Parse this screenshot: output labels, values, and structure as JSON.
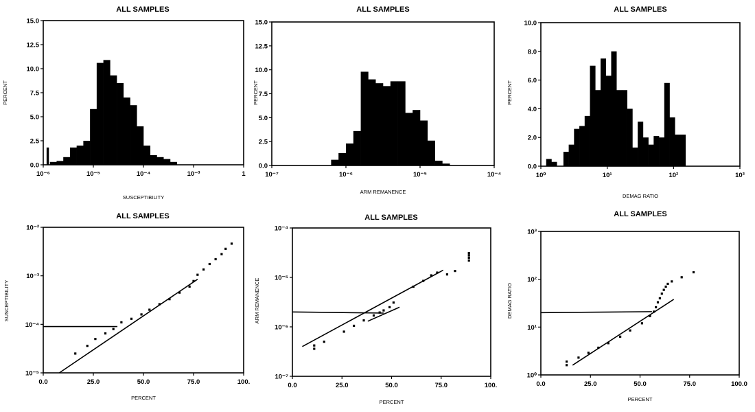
{
  "chart_data": [
    {
      "type": "bar",
      "title": "ALL SAMPLES",
      "xlabel": "SUSCEPTIBILITY",
      "ylabel": "PERCENT",
      "x_scale": "log",
      "xlim": [
        1e-06,
        1
      ],
      "ylim": [
        0,
        15
      ],
      "x_ticks": [
        "10⁻⁶",
        "10⁻⁵",
        "10⁻⁴",
        "10⁻³",
        "1"
      ],
      "y_ticks": [
        "0.0",
        "2.5",
        "5.0",
        "7.5",
        "10.0",
        "12.5",
        "15.0"
      ],
      "bins_log10_start": [
        -5.8,
        -5.6,
        -5.4,
        -5.2,
        -5.0,
        -4.8,
        -4.6,
        -4.4,
        -4.2,
        -4.0,
        -3.8,
        -3.6,
        -3.4,
        -3.2,
        -3.0
      ],
      "bin_width_log10": 0.2,
      "isolated_bins": [
        {
          "log10_start": -5.9,
          "log10_end": -5.83,
          "value": 1.8
        }
      ],
      "values": [
        0.3,
        0.4,
        0.8,
        1.8,
        2.0,
        2.5,
        5.8,
        10.6,
        10.9,
        9.3,
        8.5,
        7.0,
        6.2,
        4.0,
        2.0,
        1.0,
        0.8,
        0.6,
        0.3
      ],
      "values_bins_log10_start": [
        -5.8,
        -5.6,
        -5.4,
        -5.2,
        -5.0,
        -4.8,
        -4.6,
        -4.4,
        -4.2,
        -4.0,
        -3.8,
        -3.6,
        -3.4,
        -3.2,
        -3.0,
        -2.8,
        -2.6,
        -2.4,
        -2.2
      ]
    },
    {
      "type": "bar",
      "title": "ALL SAMPLES",
      "xlabel": "ARM REMANENCE",
      "ylabel": "PERCENT",
      "x_scale": "log",
      "xlim": [
        1e-07,
        0.0001
      ],
      "ylim": [
        0,
        15
      ],
      "x_ticks": [
        "10⁻⁷",
        "10⁻⁶",
        "10⁻⁵",
        "10⁻⁴"
      ],
      "y_ticks": [
        "0.0",
        "2.5",
        "5.0",
        "7.5",
        "10.0",
        "12.5",
        "15.0"
      ],
      "bins_log10_start": [
        -6.2,
        -6.1,
        -6.0,
        -5.9,
        -5.8,
        -5.7,
        -5.6,
        -5.5,
        -5.4,
        -5.3,
        -5.2,
        -5.1,
        -5.0,
        -4.9,
        -4.8,
        -4.7
      ],
      "bin_width_log10": 0.1,
      "values": [
        0.6,
        1.3,
        2.3,
        3.6,
        9.8,
        9.0,
        8.6,
        8.3,
        8.8,
        8.8,
        5.5,
        5.8,
        4.7,
        2.6,
        0.5,
        0.2
      ]
    },
    {
      "type": "bar",
      "title": "ALL SAMPLES",
      "xlabel": "DEMAG RATIO",
      "ylabel": "PERCENT",
      "x_scale": "log",
      "xlim": [
        1,
        1000
      ],
      "ylim": [
        0,
        10
      ],
      "x_ticks": [
        "10⁰",
        "10¹",
        "10²",
        "10³"
      ],
      "y_ticks": [
        "0.0",
        "2.0",
        "4.0",
        "6.0",
        "8.0",
        "10.0"
      ],
      "bins_log10_start": [
        0.08,
        0.16,
        0.34,
        0.42,
        0.5,
        0.58,
        0.66,
        0.74,
        0.82,
        0.9,
        0.98,
        1.06,
        1.14,
        1.22,
        1.3,
        1.38,
        1.46,
        1.54,
        1.62,
        1.7,
        1.78,
        1.86,
        1.94,
        2.02,
        2.1
      ],
      "bin_width_log10": 0.08,
      "values": [
        0.5,
        0.3,
        1.0,
        1.5,
        2.6,
        2.8,
        3.5,
        7.0,
        5.3,
        7.5,
        6.3,
        8.0,
        5.3,
        5.3,
        4.0,
        1.3,
        3.1,
        2.0,
        1.5,
        2.1,
        2.0,
        5.8,
        3.4,
        2.2,
        2.2
      ]
    },
    {
      "type": "scatter",
      "title": "ALL SAMPLES",
      "xlabel": "PERCENT",
      "ylabel": "SUSCEPTIBILITY",
      "y_scale": "log",
      "xlim": [
        0,
        100
      ],
      "ylim": [
        1e-05,
        0.01
      ],
      "x_ticks": [
        "0.0",
        "25.0",
        "50.0",
        "75.0",
        "100."
      ],
      "y_ticks": [
        "10⁻⁵",
        "10⁻⁴",
        "10⁻³",
        "10⁻²"
      ],
      "points": [
        [
          16,
          2.5e-05
        ],
        [
          22,
          3.6e-05
        ],
        [
          26,
          5e-05
        ],
        [
          31,
          6.5e-05
        ],
        [
          35,
          8e-05
        ],
        [
          39,
          0.00011
        ],
        [
          44,
          0.00013
        ],
        [
          49,
          0.00016
        ],
        [
          53,
          0.0002
        ],
        [
          58,
          0.00026
        ],
        [
          63,
          0.00033
        ],
        [
          68,
          0.00045
        ],
        [
          73,
          0.0006
        ],
        [
          75,
          0.00078
        ],
        [
          77,
          0.00105
        ],
        [
          80,
          0.00135
        ],
        [
          83,
          0.00175
        ],
        [
          86,
          0.0022
        ],
        [
          89,
          0.0028
        ],
        [
          91,
          0.0036
        ],
        [
          94,
          0.0046
        ]
      ],
      "lines": [
        {
          "points": [
            [
              8,
              1e-05
            ],
            [
              77,
              0.00085
            ]
          ]
        },
        {
          "points": [
            [
              0,
              9e-05
            ],
            [
              37,
              9e-05
            ]
          ]
        }
      ]
    },
    {
      "type": "scatter",
      "title": "ALL SAMPLES",
      "xlabel": "PERCENT",
      "ylabel": "ARM REMANENCE",
      "y_scale": "log",
      "xlim": [
        0,
        100
      ],
      "ylim": [
        1e-07,
        0.0001
      ],
      "x_ticks": [
        "0.0",
        "25.0",
        "50.0",
        "75.0",
        "100."
      ],
      "y_ticks": [
        "10⁻⁷",
        "10⁻⁶",
        "10⁻⁵",
        "10⁻⁴"
      ],
      "points": [
        [
          11,
          3.6e-07
        ],
        [
          11,
          4.2e-07
        ],
        [
          16,
          5e-07
        ],
        [
          26,
          8e-07
        ],
        [
          31,
          1.05e-06
        ],
        [
          36,
          1.35e-06
        ],
        [
          41,
          1.7e-06
        ],
        [
          44,
          1.95e-06
        ],
        [
          46,
          2.15e-06
        ],
        [
          49,
          2.5e-06
        ],
        [
          51,
          3.1e-06
        ],
        [
          61,
          6.5e-06
        ],
        [
          66,
          8.5e-06
        ],
        [
          70,
          1.1e-05
        ],
        [
          73,
          1.25e-05
        ],
        [
          78,
          1.15e-05
        ],
        [
          82,
          1.35e-05
        ],
        [
          89,
          2.2e-05
        ],
        [
          89,
          2.5e-05
        ],
        [
          89,
          2.8e-05
        ],
        [
          89,
          3.1e-05
        ]
      ],
      "lines": [
        {
          "points": [
            [
              5,
              4e-07
            ],
            [
              76,
              1.4e-05
            ]
          ]
        },
        {
          "points": [
            [
              38,
              1.3e-06
            ],
            [
              54,
              2.5e-06
            ]
          ]
        },
        {
          "points": [
            [
              0,
              2e-06
            ],
            [
              46,
              1.9e-06
            ]
          ]
        }
      ]
    },
    {
      "type": "scatter",
      "title": "ALL SAMPLES",
      "xlabel": "PERCENT",
      "ylabel": "DEMAG RATIO",
      "y_scale": "log",
      "xlim": [
        0,
        100
      ],
      "ylim": [
        1,
        1000
      ],
      "x_ticks": [
        "0.0",
        "25.0",
        "50.0",
        "75.0",
        "100.0"
      ],
      "y_ticks": [
        "10⁰",
        "10¹",
        "10²",
        "10³"
      ],
      "points": [
        [
          13,
          1.6
        ],
        [
          13,
          1.9
        ],
        [
          19,
          2.3
        ],
        [
          24,
          2.9
        ],
        [
          29,
          3.7
        ],
        [
          34,
          4.6
        ],
        [
          40,
          6.3
        ],
        [
          45,
          8.5
        ],
        [
          51,
          12
        ],
        [
          55,
          17
        ],
        [
          57,
          21
        ],
        [
          58,
          26
        ],
        [
          59,
          33
        ],
        [
          60,
          40
        ],
        [
          61,
          50
        ],
        [
          62,
          60
        ],
        [
          63,
          70
        ],
        [
          64,
          80
        ],
        [
          66,
          90
        ],
        [
          71,
          110
        ],
        [
          77,
          140
        ]
      ],
      "lines": [
        {
          "points": [
            [
              16,
              1.6
            ],
            [
              67,
              38
            ]
          ]
        },
        {
          "points": [
            [
              0,
              20
            ],
            [
              56,
              21
            ]
          ]
        }
      ]
    }
  ]
}
